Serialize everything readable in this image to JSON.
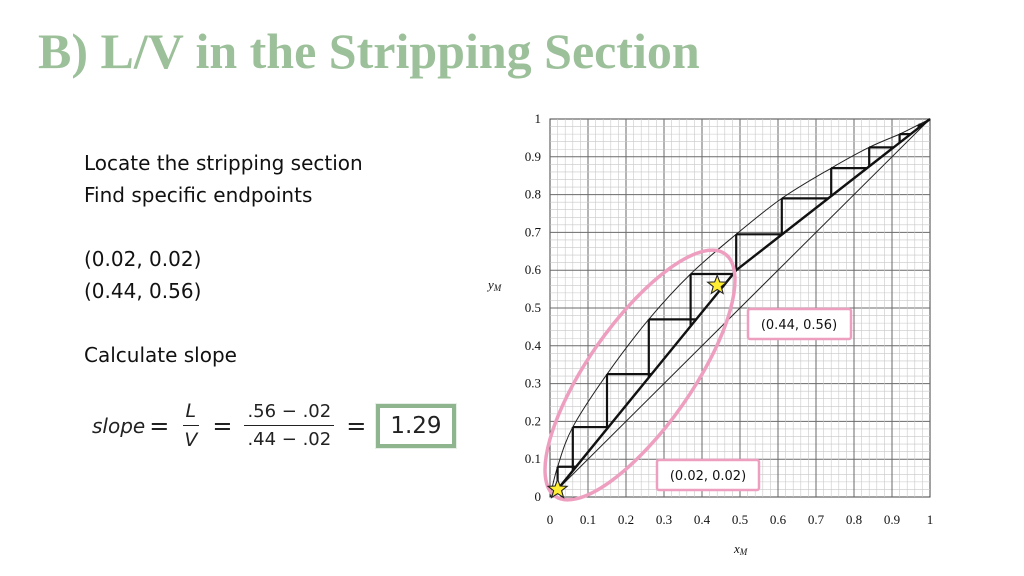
{
  "slide": {
    "title": "B) L/V in the Stripping Section",
    "notes": [
      "Locate the stripping section",
      "Find specific endpoints",
      "",
      "(0.02, 0.02)",
      "(0.44, 0.56)",
      "",
      "Calculate slope"
    ],
    "equation": {
      "lhs": "slope",
      "num_var": "L",
      "den_var": "V",
      "num_expr": ".56 − .02",
      "den_expr": ".44 − .02",
      "result": "1.29"
    }
  },
  "diagram": {
    "xlabel": "x",
    "xlabel_sub": "M",
    "ylabel": "y",
    "ylabel_sub": "M",
    "ticks": [
      "0",
      "0.1",
      "0.2",
      "0.3",
      "0.4",
      "0.5",
      "0.6",
      "0.7",
      "0.8",
      "0.9",
      "1"
    ],
    "callouts": [
      "(0.44, 0.56)",
      "(0.02, 0.02)"
    ],
    "points": [
      {
        "x": 0.02,
        "y": 0.02
      },
      {
        "x": 0.44,
        "y": 0.56
      }
    ],
    "equilibrium_curve": [
      [
        0,
        0
      ],
      [
        0.02,
        0.08
      ],
      [
        0.06,
        0.185
      ],
      [
        0.15,
        0.325
      ],
      [
        0.26,
        0.47
      ],
      [
        0.37,
        0.59
      ],
      [
        0.49,
        0.695
      ],
      [
        0.61,
        0.79
      ],
      [
        0.74,
        0.87
      ],
      [
        0.84,
        0.925
      ],
      [
        0.92,
        0.96
      ],
      [
        0.97,
        0.985
      ],
      [
        1,
        1
      ]
    ],
    "operating_line": [
      [
        0.02,
        0.02
      ],
      [
        0.49,
        0.6
      ],
      [
        1,
        1
      ]
    ],
    "steps": [
      [
        0.49,
        0.695
      ],
      [
        0.61,
        0.79
      ],
      [
        0.74,
        0.87
      ],
      [
        0.84,
        0.925
      ],
      [
        0.92,
        0.96
      ],
      [
        0.97,
        0.985
      ],
      [
        0.37,
        0.59
      ],
      [
        0.26,
        0.47
      ],
      [
        0.15,
        0.325
      ],
      [
        0.06,
        0.185
      ],
      [
        0.02,
        0.08
      ]
    ]
  }
}
